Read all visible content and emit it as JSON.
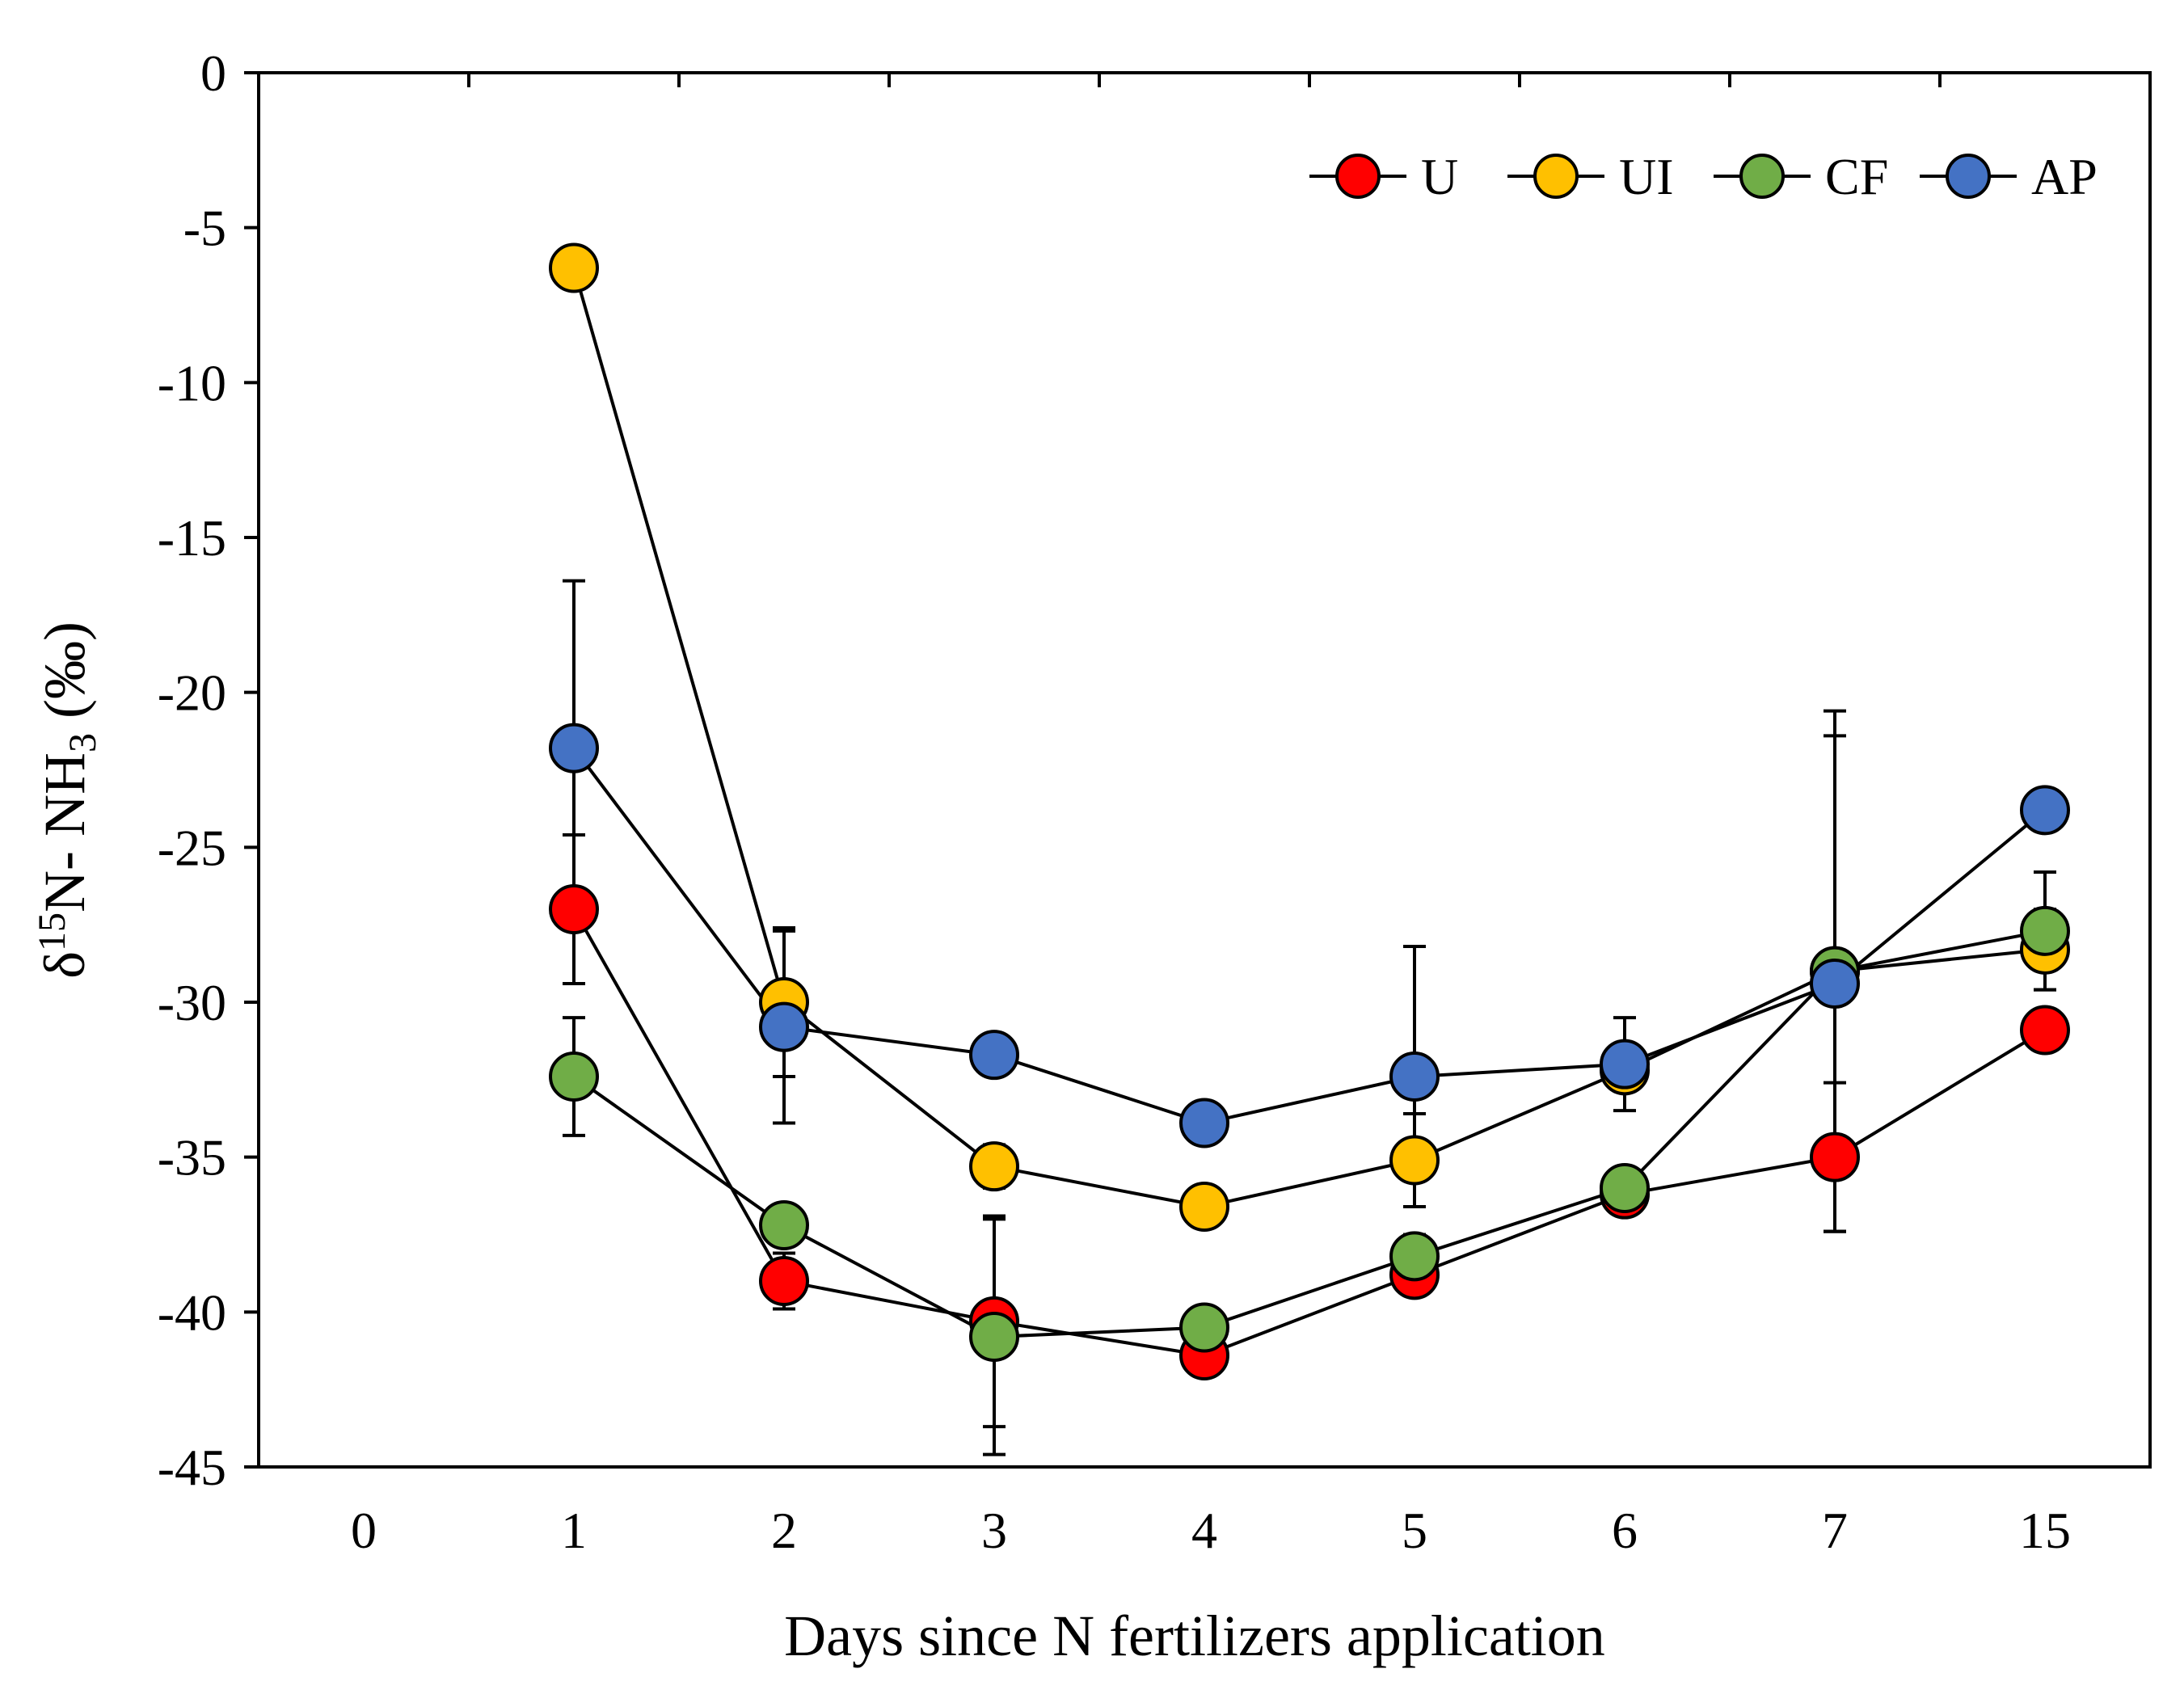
{
  "chart_data": {
    "type": "line",
    "title": "",
    "xlabel": "Days since N fertilizers application",
    "ylabel": {
      "prefix": "δ",
      "sup": "15",
      "mid": "N- NH",
      "sub": "3",
      "suffix": " (‰)"
    },
    "categories": [
      "0",
      "1",
      "2",
      "3",
      "4",
      "5",
      "6",
      "7",
      "15"
    ],
    "ylim": [
      -45,
      0
    ],
    "yticks": [
      0,
      -5,
      -10,
      -15,
      -20,
      -25,
      -30,
      -35,
      -40,
      -45
    ],
    "grid": false,
    "legend_position": "top-right",
    "series": [
      {
        "name": "U",
        "color": "#ff0000",
        "values": [
          null,
          -27.0,
          -39.0,
          -40.3,
          -41.4,
          -38.8,
          -36.2,
          -35.0,
          -30.9
        ],
        "errors": [
          null,
          2.4,
          0.9,
          3.4,
          null,
          0.6,
          null,
          2.4,
          null
        ]
      },
      {
        "name": "UI",
        "color": "#ffc000",
        "values": [
          null,
          -6.3,
          -30.0,
          -35.3,
          -36.6,
          -35.1,
          -32.2,
          -29.0,
          -28.3
        ],
        "errors": [
          null,
          null,
          2.4,
          0.7,
          null,
          1.5,
          null,
          null,
          1.3
        ]
      },
      {
        "name": "CF",
        "color": "#70ad47",
        "values": [
          null,
          -32.4,
          -37.2,
          -40.8,
          -40.5,
          -38.2,
          -36.0,
          -29.0,
          -27.7
        ],
        "errors": [
          null,
          1.9,
          null,
          3.8,
          null,
          0.7,
          null,
          8.4,
          1.9
        ]
      },
      {
        "name": "AP",
        "color": "#4472c4",
        "values": [
          null,
          -21.8,
          -30.8,
          -31.7,
          -33.9,
          -32.4,
          -32.0,
          -29.4,
          -23.8
        ],
        "errors": [
          null,
          5.4,
          3.1,
          null,
          null,
          4.2,
          1.5,
          8.0,
          null
        ]
      }
    ]
  }
}
